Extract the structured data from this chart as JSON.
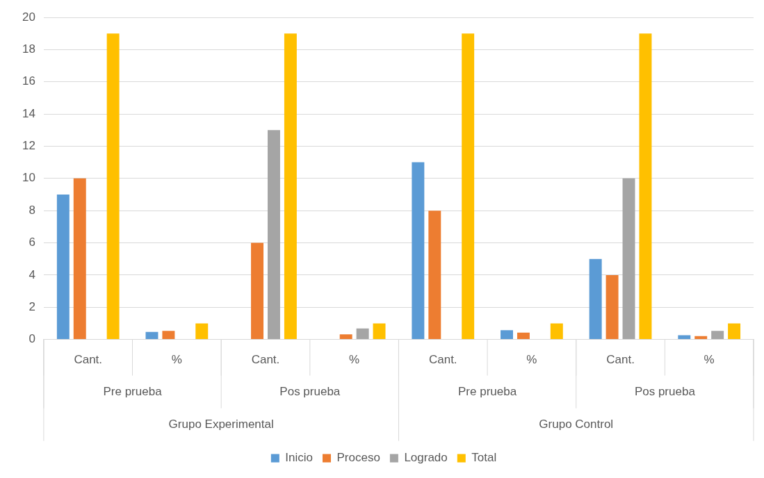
{
  "chart_data": {
    "type": "bar",
    "categories": [
      "Cant.",
      "%",
      "Cant.",
      "%",
      "Cant.",
      "%",
      "Cant.",
      "%"
    ],
    "series": [
      {
        "name": "Inicio",
        "color": "#5b9bd5",
        "values": [
          9,
          0.47,
          0,
          0,
          11,
          0.58,
          5,
          0.26
        ]
      },
      {
        "name": "Proceso",
        "color": "#ed7d31",
        "values": [
          10,
          0.53,
          6,
          0.32,
          8,
          0.42,
          4,
          0.21
        ]
      },
      {
        "name": "Logrado",
        "color": "#a5a5a5",
        "values": [
          0,
          0,
          13,
          0.68,
          0,
          0,
          10,
          0.53
        ]
      },
      {
        "name": "Total",
        "color": "#ffc000",
        "values": [
          19,
          1,
          19,
          1,
          19,
          1,
          19,
          1
        ]
      }
    ],
    "annotations": [
      "Pre prueba",
      "Pos prueba",
      "Pre prueba",
      "Pos prueba",
      "Grupo Experimental",
      "Grupo Control"
    ],
    "ylim": [
      0,
      20
    ],
    "yticks": [
      0,
      2,
      4,
      6,
      8,
      10,
      12,
      14,
      16,
      18,
      20
    ],
    "grid": "y",
    "legend": "bottom"
  }
}
